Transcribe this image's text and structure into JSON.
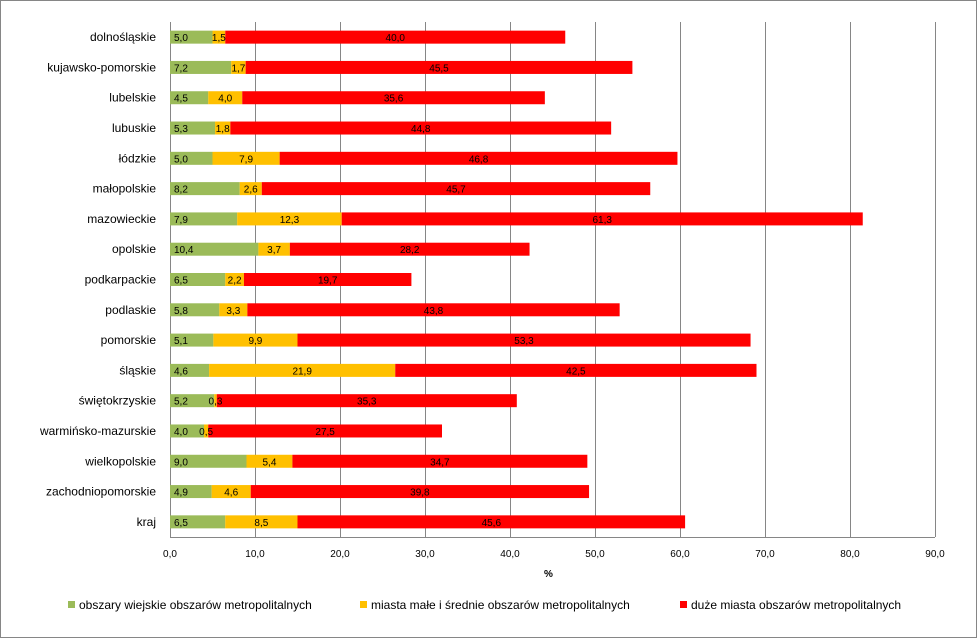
{
  "chart_data": {
    "type": "bar",
    "orientation": "horizontal",
    "stacked": true,
    "categories": [
      "dolnośląskie",
      "kujawsko-pomorskie",
      "lubelskie",
      "lubuskie",
      "łódzkie",
      "małopolskie",
      "mazowieckie",
      "opolskie",
      "podkarpackie",
      "podlaskie",
      "pomorskie",
      "śląskie",
      "świętokrzyskie",
      "warmińsko-mazurskie",
      "wielkopolskie",
      "zachodniopomorskie",
      "kraj"
    ],
    "series": [
      {
        "name": "obszary wiejskie obszarów metropolitalnych",
        "color": "#9bbb59",
        "values": [
          5.0,
          7.2,
          4.5,
          5.3,
          5.0,
          8.2,
          7.9,
          10.4,
          6.5,
          5.8,
          5.1,
          4.6,
          5.2,
          4.0,
          9.0,
          4.9,
          6.5
        ],
        "labels": [
          "5,0",
          "7,2",
          "4,5",
          "5,3",
          "5,0",
          "8,2",
          "7,9",
          "10,4",
          "6,5",
          "5,8",
          "5,1",
          "4,6",
          "5,2",
          "4,0",
          "9,0",
          "4,9",
          "6,5"
        ]
      },
      {
        "name": "miasta małe i średnie obszarów metropolitalnych",
        "color": "#ffc000",
        "values": [
          1.5,
          1.7,
          4.0,
          1.8,
          7.9,
          2.6,
          12.3,
          3.7,
          2.2,
          3.3,
          9.9,
          21.9,
          0.3,
          0.5,
          5.4,
          4.6,
          8.5
        ],
        "labels": [
          "1,5",
          "1,7",
          "4,0",
          "1,8",
          "7,9",
          "2,6",
          "12,3",
          "3,7",
          "2,2",
          "3,3",
          "9,9",
          "21,9",
          "0,3",
          "0,5",
          "5,4",
          "4,6",
          "8,5"
        ]
      },
      {
        "name": "duże miasta obszarów metropolitalnych",
        "color": "#ff0000",
        "values": [
          40.0,
          45.5,
          35.6,
          44.8,
          46.8,
          45.7,
          61.3,
          28.2,
          19.7,
          43.8,
          53.3,
          42.5,
          35.3,
          27.5,
          34.7,
          39.8,
          45.6
        ],
        "labels": [
          "40,0",
          "45,5",
          "35,6",
          "44,8",
          "46,8",
          "45,7",
          "61,3",
          "28,2",
          "19,7",
          "43,8",
          "53,3",
          "42,5",
          "35,3",
          "27,5",
          "34,7",
          "39,8",
          "45,6"
        ]
      }
    ],
    "xlim": [
      0,
      90
    ],
    "x_ticks": [
      0,
      10,
      20,
      30,
      40,
      50,
      60,
      70,
      80,
      90
    ],
    "x_tick_labels": [
      "0,0",
      "10,0",
      "20,0",
      "30,0",
      "40,0",
      "50,0",
      "60,0",
      "70,0",
      "80,0",
      "90,0"
    ],
    "xlabel": "%",
    "ylabel": "",
    "title": "",
    "grid": "vertical",
    "gridline_color": "#868686",
    "legend_position": "bottom"
  }
}
